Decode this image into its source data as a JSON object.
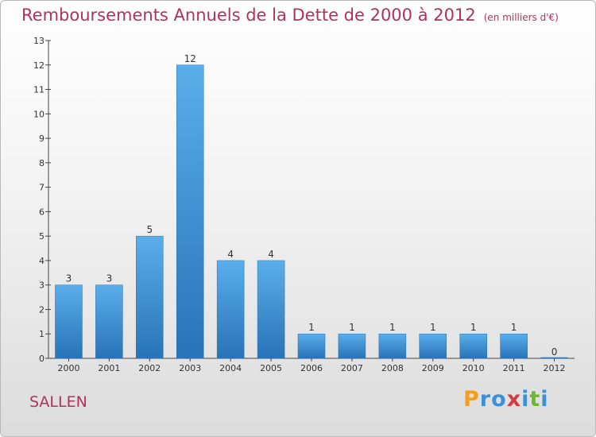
{
  "chart_data": {
    "type": "bar",
    "title": "Remboursements Annuels de la Dette de 2000 à 2012",
    "unit": "(en milliers d'€)",
    "categories": [
      "2000",
      "2001",
      "2002",
      "2003",
      "2004",
      "2005",
      "2006",
      "2007",
      "2008",
      "2009",
      "2010",
      "2011",
      "2012"
    ],
    "values": [
      3,
      3,
      5,
      12,
      4,
      4,
      1,
      1,
      1,
      1,
      1,
      1,
      0
    ],
    "ylim": [
      0,
      13
    ],
    "yticks": [
      0,
      1,
      2,
      3,
      4,
      5,
      6,
      7,
      8,
      9,
      10,
      11,
      12,
      13
    ],
    "grid": false,
    "bar_color": "#3d8fd6"
  },
  "commune": "SALLEN",
  "logo": {
    "text": "Proxiti",
    "letters": [
      {
        "char": "P",
        "color": "#f0a020"
      },
      {
        "char": "r",
        "color": "#3d8fd6"
      },
      {
        "char": "o",
        "color": "#3d8fd6"
      },
      {
        "char": "x",
        "color": "#d63b3b"
      },
      {
        "char": "i",
        "color": "#3d8fd6"
      },
      {
        "char": "t",
        "color": "#6cb82c"
      },
      {
        "char": "i",
        "color": "#3d8fd6"
      }
    ]
  }
}
